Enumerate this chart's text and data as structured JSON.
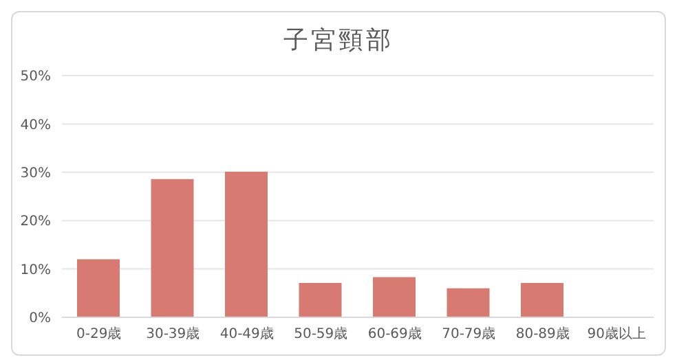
{
  "chart_data": {
    "type": "bar",
    "title": "子宮頸部",
    "categories": [
      "0-29歳",
      "30-39歳",
      "40-49歳",
      "50-59歳",
      "60-69歳",
      "70-79歳",
      "80-89歳",
      "90歳以上"
    ],
    "values": [
      12,
      28.6,
      30.1,
      7.1,
      8.3,
      6,
      7.1,
      0
    ],
    "color": "#d77b72",
    "ylim": [
      0,
      50
    ],
    "yticks": [
      {
        "value": 0,
        "label": "0%"
      },
      {
        "value": 10,
        "label": "10%"
      },
      {
        "value": 20,
        "label": "20%"
      },
      {
        "value": 30,
        "label": "30%"
      },
      {
        "value": 40,
        "label": "40%"
      },
      {
        "value": 50,
        "label": "50%"
      }
    ],
    "grid": "y"
  }
}
